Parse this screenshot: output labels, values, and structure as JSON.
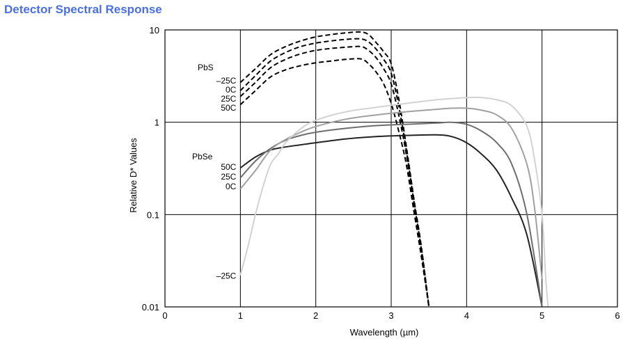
{
  "title": "Detector Spectral Response",
  "title_color": "#4a6fe0",
  "chart_data": {
    "type": "line",
    "xlabel": "Wavelength (µm)",
    "ylabel": "Relative D* Values",
    "xlim": [
      0,
      6
    ],
    "ylim": [
      0.01,
      10
    ],
    "yscale": "log",
    "grid": true,
    "x_ticks": [
      "0",
      "1",
      "2",
      "3",
      "4",
      "5",
      "6"
    ],
    "y_ticks": [
      "0.01",
      "0.1",
      "1",
      "10"
    ],
    "group_labels": {
      "pbs": "PbS",
      "pbse": "PbSe"
    },
    "series": [
      {
        "group": "PbS",
        "name": "–25C",
        "label": "–25C",
        "style": "dashed",
        "color": "#000000",
        "points": [
          [
            1.0,
            2.7
          ],
          [
            1.2,
            3.8
          ],
          [
            1.4,
            5.4
          ],
          [
            1.6,
            6.6
          ],
          [
            1.8,
            7.6
          ],
          [
            2.0,
            8.4
          ],
          [
            2.2,
            8.9
          ],
          [
            2.4,
            9.3
          ],
          [
            2.6,
            9.5
          ],
          [
            2.7,
            8.9
          ],
          [
            2.8,
            7.3
          ],
          [
            2.9,
            5.8
          ],
          [
            3.0,
            4.3
          ],
          [
            3.1,
            1.8
          ],
          [
            3.2,
            0.55
          ],
          [
            3.3,
            0.15
          ],
          [
            3.4,
            0.045
          ],
          [
            3.5,
            0.01
          ]
        ]
      },
      {
        "group": "PbS",
        "name": "0C",
        "label": "0C",
        "style": "dashed",
        "color": "#000000",
        "points": [
          [
            1.0,
            2.2
          ],
          [
            1.2,
            3.2
          ],
          [
            1.4,
            4.6
          ],
          [
            1.6,
            5.7
          ],
          [
            1.8,
            6.6
          ],
          [
            2.0,
            7.2
          ],
          [
            2.2,
            7.6
          ],
          [
            2.4,
            7.9
          ],
          [
            2.6,
            8.0
          ],
          [
            2.7,
            7.4
          ],
          [
            2.8,
            6.2
          ],
          [
            2.9,
            4.8
          ],
          [
            3.0,
            3.4
          ],
          [
            3.1,
            1.5
          ],
          [
            3.2,
            0.5
          ],
          [
            3.3,
            0.14
          ],
          [
            3.4,
            0.042
          ],
          [
            3.5,
            0.01
          ]
        ]
      },
      {
        "group": "PbS",
        "name": "25C",
        "label": "25C",
        "style": "dashed",
        "color": "#000000",
        "points": [
          [
            1.0,
            1.9
          ],
          [
            1.2,
            2.7
          ],
          [
            1.4,
            3.9
          ],
          [
            1.6,
            4.8
          ],
          [
            1.8,
            5.5
          ],
          [
            2.0,
            6.0
          ],
          [
            2.2,
            6.3
          ],
          [
            2.4,
            6.5
          ],
          [
            2.6,
            6.6
          ],
          [
            2.7,
            6.0
          ],
          [
            2.8,
            5.0
          ],
          [
            2.9,
            3.8
          ],
          [
            3.0,
            2.6
          ],
          [
            3.1,
            1.2
          ],
          [
            3.2,
            0.45
          ],
          [
            3.3,
            0.13
          ],
          [
            3.4,
            0.04
          ],
          [
            3.5,
            0.01
          ]
        ]
      },
      {
        "group": "PbS",
        "name": "50C",
        "label": "50C",
        "style": "dashed",
        "color": "#000000",
        "points": [
          [
            1.0,
            1.55
          ],
          [
            1.2,
            2.2
          ],
          [
            1.4,
            3.1
          ],
          [
            1.6,
            3.7
          ],
          [
            1.8,
            4.1
          ],
          [
            2.0,
            4.4
          ],
          [
            2.2,
            4.6
          ],
          [
            2.4,
            4.8
          ],
          [
            2.6,
            4.85
          ],
          [
            2.7,
            4.3
          ],
          [
            2.8,
            3.5
          ],
          [
            2.9,
            2.6
          ],
          [
            3.0,
            1.6
          ],
          [
            3.1,
            0.8
          ],
          [
            3.2,
            0.35
          ],
          [
            3.3,
            0.11
          ],
          [
            3.4,
            0.035
          ],
          [
            3.5,
            0.01
          ]
        ]
      },
      {
        "group": "PbSe",
        "name": "50C",
        "label": "50C",
        "style": "solid",
        "color": "#222222",
        "points": [
          [
            1.0,
            0.32
          ],
          [
            1.2,
            0.42
          ],
          [
            1.4,
            0.5
          ],
          [
            1.6,
            0.54
          ],
          [
            1.8,
            0.57
          ],
          [
            2.0,
            0.6
          ],
          [
            2.4,
            0.66
          ],
          [
            2.8,
            0.7
          ],
          [
            3.2,
            0.72
          ],
          [
            3.6,
            0.73
          ],
          [
            3.8,
            0.7
          ],
          [
            4.0,
            0.6
          ],
          [
            4.2,
            0.45
          ],
          [
            4.4,
            0.3
          ],
          [
            4.6,
            0.15
          ],
          [
            4.8,
            0.06
          ],
          [
            5.0,
            0.01
          ]
        ]
      },
      {
        "group": "PbSe",
        "name": "25C",
        "label": "25C",
        "style": "solid",
        "color": "#6e6e6e",
        "points": [
          [
            1.0,
            0.25
          ],
          [
            1.2,
            0.38
          ],
          [
            1.4,
            0.52
          ],
          [
            1.6,
            0.64
          ],
          [
            1.8,
            0.72
          ],
          [
            2.0,
            0.78
          ],
          [
            2.4,
            0.86
          ],
          [
            2.8,
            0.92
          ],
          [
            3.2,
            0.95
          ],
          [
            3.6,
            0.98
          ],
          [
            3.8,
            1.0
          ],
          [
            4.0,
            0.95
          ],
          [
            4.2,
            0.8
          ],
          [
            4.4,
            0.6
          ],
          [
            4.6,
            0.35
          ],
          [
            4.8,
            0.1
          ],
          [
            5.0,
            0.01
          ]
        ]
      },
      {
        "group": "PbSe",
        "name": "0C",
        "label": "0C",
        "style": "solid",
        "color": "#a0a0a0",
        "points": [
          [
            1.0,
            0.19
          ],
          [
            1.2,
            0.3
          ],
          [
            1.4,
            0.5
          ],
          [
            1.6,
            0.65
          ],
          [
            1.8,
            0.78
          ],
          [
            2.0,
            0.9
          ],
          [
            2.4,
            1.08
          ],
          [
            2.8,
            1.2
          ],
          [
            3.2,
            1.3
          ],
          [
            3.6,
            1.38
          ],
          [
            3.8,
            1.42
          ],
          [
            4.0,
            1.42
          ],
          [
            4.2,
            1.35
          ],
          [
            4.4,
            1.2
          ],
          [
            4.6,
            0.85
          ],
          [
            4.8,
            0.35
          ],
          [
            4.9,
            0.12
          ],
          [
            5.0,
            0.02
          ]
        ]
      },
      {
        "group": "PbSe",
        "name": "–25C",
        "label": "–25C",
        "style": "solid",
        "color": "#d2d2d2",
        "points": [
          [
            1.0,
            0.022
          ],
          [
            1.1,
            0.045
          ],
          [
            1.2,
            0.1
          ],
          [
            1.3,
            0.2
          ],
          [
            1.4,
            0.35
          ],
          [
            1.5,
            0.45
          ],
          [
            1.6,
            0.6
          ],
          [
            1.8,
            0.85
          ],
          [
            2.0,
            1.05
          ],
          [
            2.4,
            1.3
          ],
          [
            2.8,
            1.45
          ],
          [
            3.2,
            1.6
          ],
          [
            3.6,
            1.75
          ],
          [
            4.0,
            1.85
          ],
          [
            4.2,
            1.85
          ],
          [
            4.4,
            1.75
          ],
          [
            4.6,
            1.5
          ],
          [
            4.8,
            0.9
          ],
          [
            4.9,
            0.4
          ],
          [
            5.0,
            0.1
          ],
          [
            5.05,
            0.02
          ],
          [
            5.08,
            0.01
          ]
        ]
      }
    ]
  }
}
